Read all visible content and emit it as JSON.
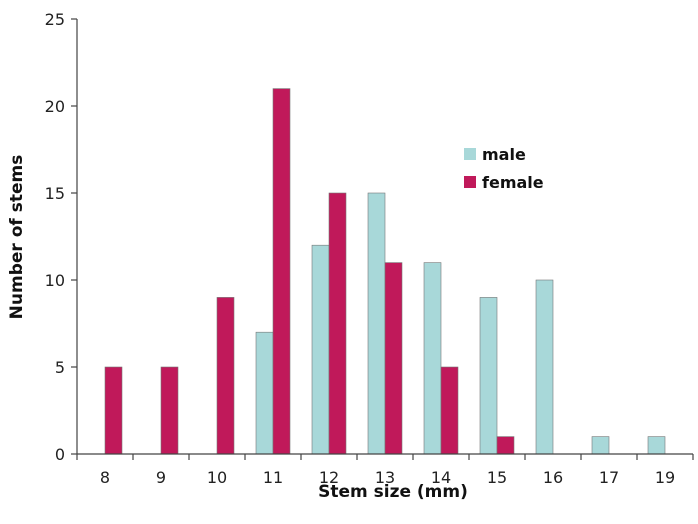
{
  "chart_data": {
    "type": "bar",
    "title": "",
    "xlabel": "Stem size (mm)",
    "ylabel": "Number of stems",
    "categories": [
      "8",
      "9",
      "10",
      "11",
      "12",
      "13",
      "14",
      "15",
      "16",
      "17",
      "19"
    ],
    "series": [
      {
        "name": "male",
        "color": "#a8d8d9",
        "values": [
          0,
          0,
          0,
          7,
          12,
          15,
          11,
          9,
          10,
          1,
          1
        ]
      },
      {
        "name": "female",
        "color": "#c0195a",
        "values": [
          5,
          5,
          9,
          21,
          15,
          11,
          5,
          1,
          0,
          0,
          0
        ]
      }
    ],
    "ylim": [
      0,
      25
    ],
    "yticks": [
      "0",
      "5",
      "10",
      "15",
      "20",
      "25"
    ],
    "grid": false,
    "legend_position": "upper-right"
  }
}
